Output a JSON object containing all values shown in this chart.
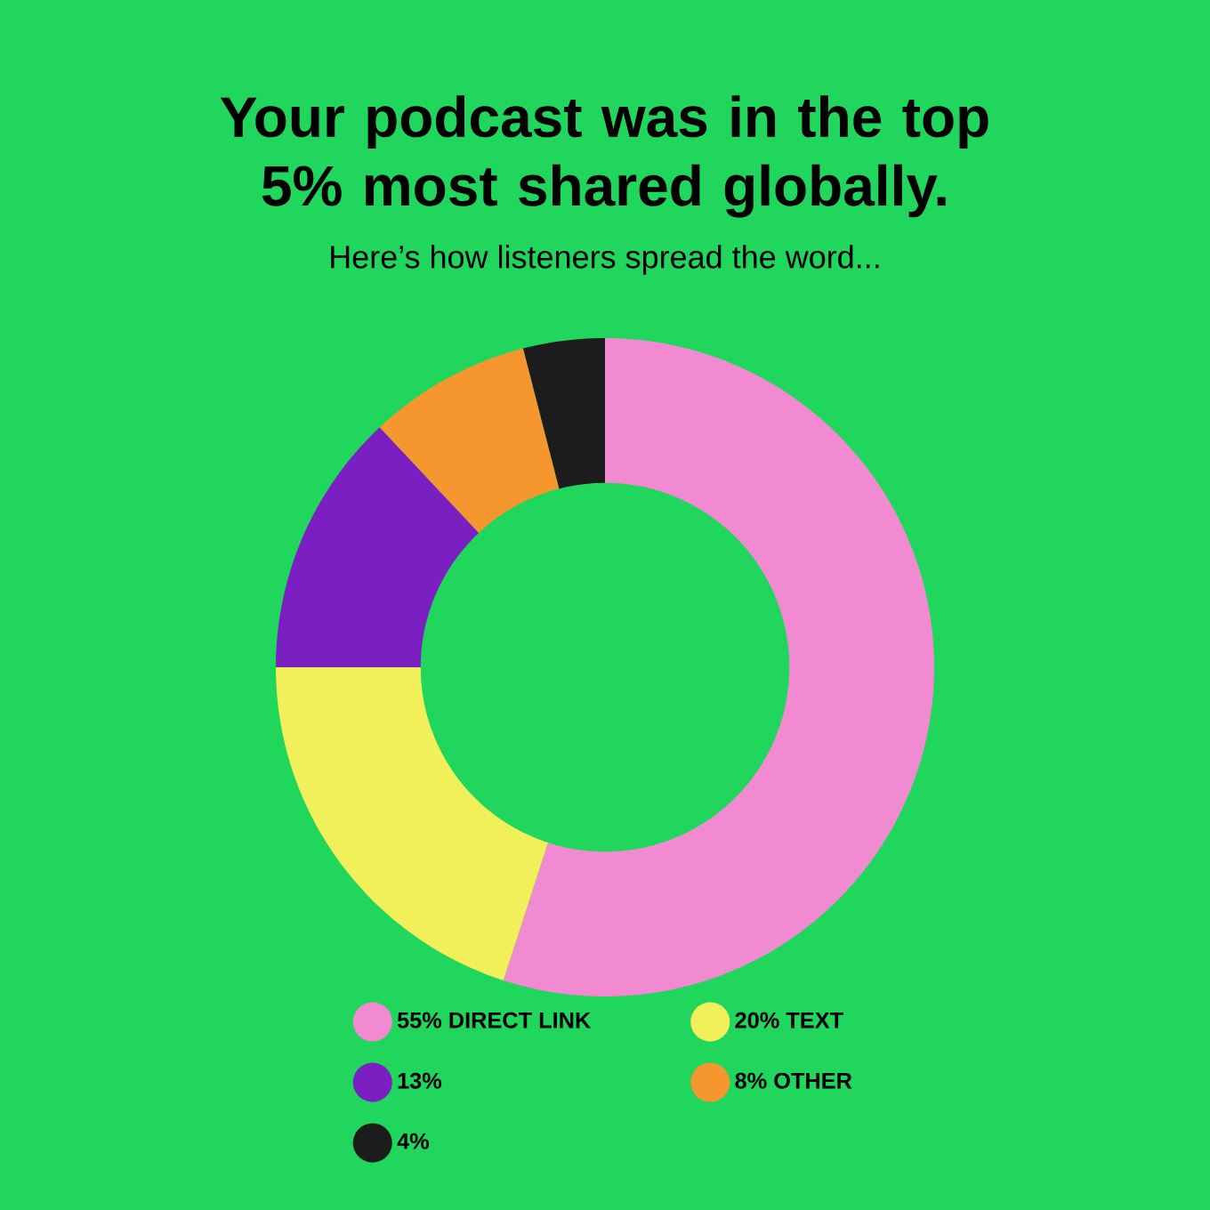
{
  "chart_data": {
    "type": "donut",
    "title": "Your podcast was in the top 5% most shared globally.",
    "subtitle": "Here’s how listeners spread the word...",
    "categories": [
      "55% DIRECT LINK",
      "20% TEXT",
      "13%",
      "8% OTHER",
      "4%"
    ],
    "values": [
      55,
      20,
      13,
      8,
      4
    ],
    "colors": [
      "#f28ad2",
      "#f2f05a",
      "#7b1fc2",
      "#f5962e",
      "#1c1c1c"
    ],
    "legend": "bottom"
  }
}
